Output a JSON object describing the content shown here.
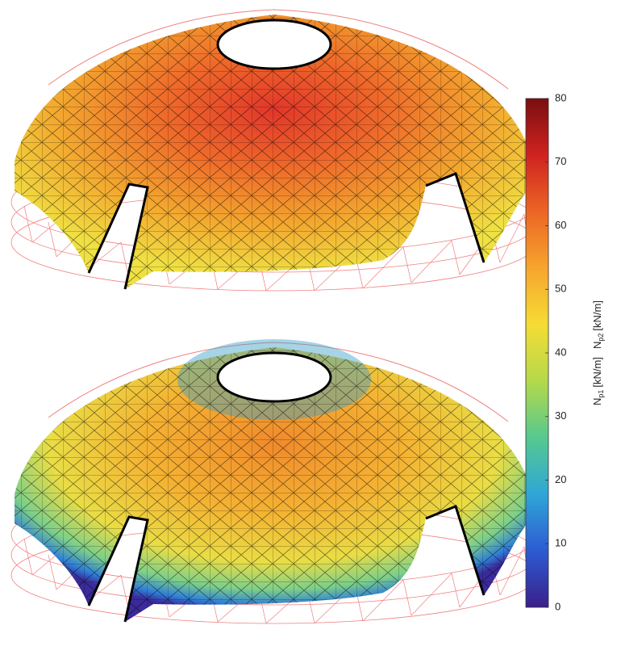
{
  "chart_data": {
    "type": "colorbar",
    "ylim": [
      0,
      80
    ],
    "yticks": [
      0,
      10,
      20,
      30,
      40,
      50,
      60,
      70,
      80
    ],
    "label_parts": [
      {
        "symbol": "N",
        "sub": "p1",
        "unit": "[kN/m]"
      },
      {
        "symbol": "N",
        "sub": "p2",
        "unit": "[kN/m]"
      }
    ],
    "colormap": [
      "#3a1f8a",
      "#2d5bd2",
      "#2fa6d6",
      "#56c98f",
      "#b4d94a",
      "#f5dc35",
      "#f7a52d",
      "#ec6525",
      "#cf2320",
      "#7a0e10"
    ]
  }
}
